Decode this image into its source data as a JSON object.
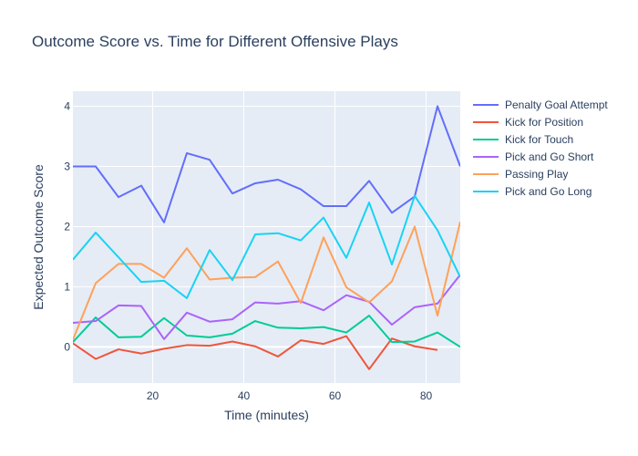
{
  "chart_data": {
    "type": "line",
    "title": "Outcome Score vs. Time for Different Offensive Plays",
    "xlabel": "Time (minutes)",
    "ylabel": "Expected Outcome Score",
    "xlim": [
      2.5,
      87.5
    ],
    "ylim": [
      -0.6,
      4.25
    ],
    "xticks": [
      20,
      40,
      60,
      80
    ],
    "yticks": [
      0,
      1,
      2,
      3,
      4
    ],
    "grid": true,
    "legend_position": "right",
    "x": [
      2.5,
      7.5,
      12.5,
      17.5,
      22.5,
      27.5,
      32.5,
      37.5,
      42.5,
      47.5,
      52.5,
      57.5,
      62.5,
      67.5,
      72.5,
      77.5,
      82.5,
      87.5
    ],
    "series": [
      {
        "name": "Penalty Goal Attempt",
        "color": "#636efa",
        "values": [
          3.0,
          3.0,
          2.49,
          2.68,
          2.07,
          3.22,
          3.11,
          2.55,
          2.72,
          2.78,
          2.62,
          2.34,
          2.34,
          2.76,
          2.23,
          2.5,
          4.0,
          3.0
        ]
      },
      {
        "name": "Kick for Position",
        "color": "#EF553B",
        "values": [
          0.06,
          -0.2,
          -0.04,
          -0.11,
          -0.03,
          0.03,
          0.02,
          0.09,
          0.01,
          -0.16,
          0.11,
          0.05,
          0.18,
          -0.37,
          0.14,
          0.01,
          -0.05,
          null
        ]
      },
      {
        "name": "Kick for Touch",
        "color": "#00cc96",
        "values": [
          0.08,
          0.49,
          0.16,
          0.17,
          0.48,
          0.19,
          0.16,
          0.22,
          0.43,
          0.32,
          0.31,
          0.33,
          0.24,
          0.52,
          0.08,
          0.09,
          0.24,
          0.0
        ]
      },
      {
        "name": "Pick and Go Short",
        "color": "#ab63fa",
        "values": [
          0.4,
          0.43,
          0.69,
          0.68,
          0.13,
          0.57,
          0.42,
          0.46,
          0.74,
          0.72,
          0.76,
          0.61,
          0.86,
          0.75,
          0.37,
          0.66,
          0.72,
          1.2
        ]
      },
      {
        "name": "Passing Play",
        "color": "#FFA15A",
        "values": [
          0.12,
          1.06,
          1.38,
          1.38,
          1.15,
          1.64,
          1.12,
          1.15,
          1.16,
          1.42,
          0.73,
          1.82,
          0.99,
          0.74,
          1.09,
          2.0,
          0.52,
          2.08
        ]
      },
      {
        "name": "Pick and Go Long",
        "color": "#19d3f3",
        "values": [
          1.45,
          1.9,
          1.49,
          1.08,
          1.1,
          0.81,
          1.61,
          1.11,
          1.87,
          1.89,
          1.77,
          2.15,
          1.48,
          2.4,
          1.37,
          2.51,
          1.94,
          1.16
        ]
      }
    ]
  }
}
